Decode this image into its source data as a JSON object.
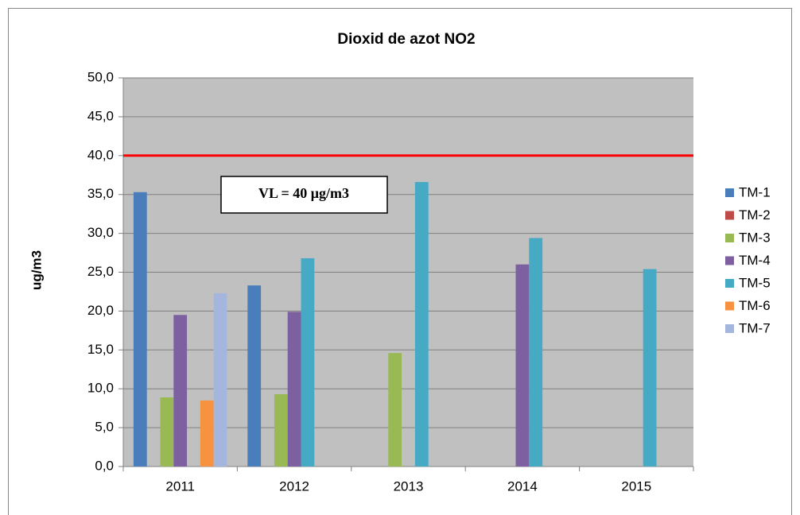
{
  "chart_data": {
    "type": "bar",
    "title": "Dioxid de azot NO2",
    "y_label": "ug/m3",
    "categories": [
      "2011",
      "2012",
      "2013",
      "2014",
      "2015"
    ],
    "series": [
      {
        "name": "TM-1",
        "color": "#4a7ebb",
        "values": [
          35.3,
          23.3,
          null,
          null,
          null
        ]
      },
      {
        "name": "TM-2",
        "color": "#be4b48",
        "values": [
          null,
          null,
          null,
          null,
          null
        ]
      },
      {
        "name": "TM-3",
        "color": "#98b954",
        "values": [
          8.9,
          9.3,
          14.6,
          null,
          null
        ]
      },
      {
        "name": "TM-4",
        "color": "#7d60a0",
        "values": [
          19.5,
          19.9,
          null,
          26.0,
          null
        ]
      },
      {
        "name": "TM-5",
        "color": "#46aac5",
        "values": [
          null,
          26.8,
          36.6,
          29.4,
          25.4
        ]
      },
      {
        "name": "TM-6",
        "color": "#f69240",
        "values": [
          8.5,
          null,
          null,
          null,
          null
        ]
      },
      {
        "name": "TM-7",
        "color": "#a5b6de",
        "values": [
          22.3,
          null,
          null,
          null,
          null
        ]
      }
    ],
    "reference_line": {
      "value": 40,
      "color": "#ff0000"
    },
    "annotation": "VL = 40 μg/m3",
    "ylim": [
      0,
      50
    ],
    "yticks": [
      {
        "value": 0,
        "label": "0,0"
      },
      {
        "value": 5,
        "label": "5,0"
      },
      {
        "value": 10,
        "label": "10,0"
      },
      {
        "value": 15,
        "label": "15,0"
      },
      {
        "value": 20,
        "label": "20,0"
      },
      {
        "value": 25,
        "label": "25,0"
      },
      {
        "value": 30,
        "label": "30,0"
      },
      {
        "value": 35,
        "label": "35,0"
      },
      {
        "value": 40,
        "label": "40,0"
      },
      {
        "value": 45,
        "label": "45,0"
      },
      {
        "value": 50,
        "label": "50,0"
      }
    ],
    "grid": true,
    "legend": "right"
  }
}
